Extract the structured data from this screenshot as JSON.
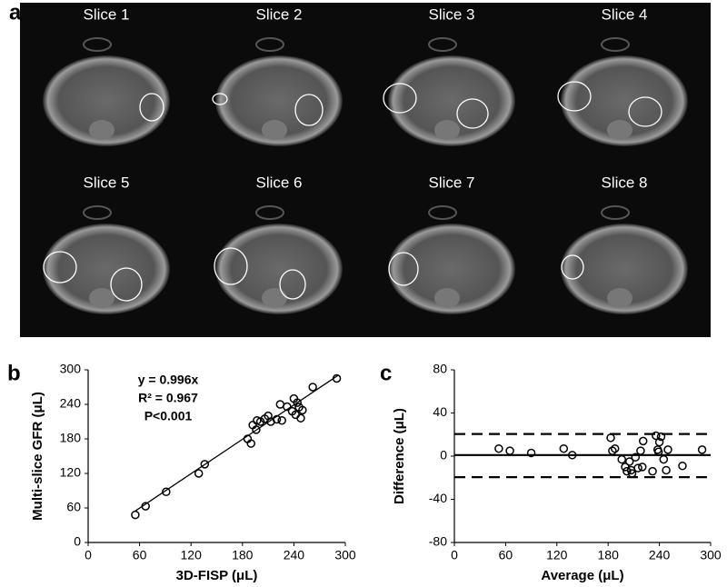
{
  "panel_a": {
    "label": "a",
    "slices": [
      "Slice 1",
      "Slice 2",
      "Slice 3",
      "Slice 4",
      "Slice 5",
      "Slice 6",
      "Slice 7",
      "Slice 8"
    ]
  },
  "chart_data": [
    {
      "type": "scatter",
      "panel_label": "b",
      "x_label": "3D-FISP (μL)",
      "y_label": "Multi-slice GFR (μL)",
      "annotations": [
        "y = 0.996x",
        "R² = 0.967",
        "P<0.001"
      ],
      "xlim": [
        0,
        300
      ],
      "ylim": [
        0,
        300
      ],
      "xticks": [
        0,
        60,
        120,
        180,
        240,
        300
      ],
      "yticks": [
        0,
        60,
        120,
        180,
        240,
        300
      ],
      "color": "#000000",
      "x": [
        55,
        67,
        91,
        129,
        136,
        186,
        190,
        192,
        196,
        197,
        201,
        206,
        210,
        213,
        220,
        224,
        226,
        232,
        238,
        240,
        242,
        244,
        246,
        248,
        250,
        262,
        290
      ],
      "y": [
        48,
        63,
        88,
        120,
        136,
        180,
        172,
        204,
        196,
        212,
        210,
        215,
        220,
        210,
        214,
        240,
        212,
        236,
        228,
        250,
        222,
        243,
        235,
        216,
        230,
        270,
        285
      ],
      "fit_line": {
        "x": [
          55,
          292
        ],
        "y": [
          54.8,
          290.8
        ]
      }
    },
    {
      "type": "scatter",
      "panel_label": "c",
      "x_label": "Average (μL)",
      "y_label": "Difference (μL)",
      "xlim": [
        0,
        300
      ],
      "ylim": [
        -80,
        80
      ],
      "xticks": [
        0,
        60,
        120,
        180,
        240,
        300
      ],
      "yticks": [
        -80,
        -40,
        0,
        40,
        80
      ],
      "color": "#000000",
      "x": [
        52,
        65,
        90,
        128,
        138,
        183,
        185,
        188,
        196,
        200,
        202,
        205,
        207,
        208,
        212,
        215,
        218,
        220,
        221,
        232,
        236,
        238,
        239,
        240,
        242,
        245,
        248,
        250,
        267,
        290
      ],
      "y": [
        7,
        5,
        3,
        7,
        1,
        17,
        5,
        7,
        -3,
        -10,
        -14,
        -5,
        -13,
        -16,
        -1,
        -11,
        5,
        -10,
        14,
        -14,
        19,
        6,
        4,
        13,
        18,
        -3,
        -13,
        6,
        -9,
        6
      ],
      "reference_lines": [
        {
          "value": 1,
          "style": "solid"
        },
        {
          "value": 20.5,
          "style": "dashed"
        },
        {
          "value": -19.5,
          "style": "dashed"
        }
      ]
    }
  ]
}
